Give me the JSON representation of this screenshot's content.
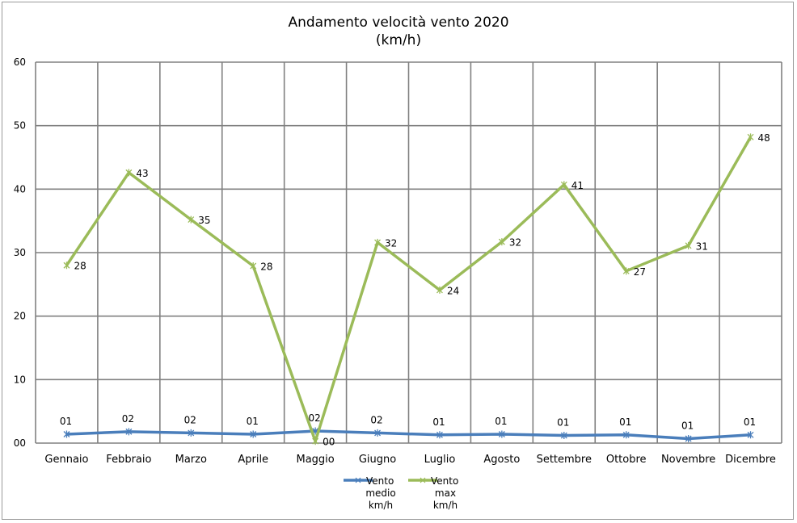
{
  "chart_data": {
    "type": "line",
    "title": "Andamento velocità vento 2020",
    "subtitle": "(km/h)",
    "xlabel": "",
    "ylabel": "",
    "categories": [
      "Gennaio",
      "Febbraio",
      "Marzo",
      "Aprile",
      "Maggio",
      "Giugno",
      "Luglio",
      "Agosto",
      "Settembre",
      "Ottobre",
      "Novembre",
      "Dicembre"
    ],
    "ylim": [
      0,
      60
    ],
    "yticks": [
      "00",
      "10",
      "20",
      "30",
      "40",
      "50",
      "60"
    ],
    "grid": true,
    "legend_position": "bottom",
    "series": [
      {
        "name": "Vento medio km/h",
        "legend_lines": [
          "Vento",
          "medio",
          "km/h"
        ],
        "color": "#4a7ebb",
        "values": [
          1.4,
          1.8,
          1.6,
          1.4,
          1.9,
          1.6,
          1.3,
          1.4,
          1.2,
          1.3,
          0.7,
          1.3
        ],
        "labels": [
          "01",
          "02",
          "02",
          "01",
          "02",
          "02",
          "01",
          "01",
          "01",
          "01",
          "01",
          "01"
        ]
      },
      {
        "name": "Vento max km/h",
        "legend_lines": [
          "Vento",
          "max",
          "km/h"
        ],
        "color": "#9bbb59",
        "values": [
          28,
          42.6,
          35.2,
          27.9,
          0.3,
          31.6,
          24.1,
          31.7,
          40.7,
          27.1,
          31.1,
          48.2
        ],
        "labels": [
          "28",
          "43",
          "35",
          "28",
          "00",
          "32",
          "24",
          "32",
          "41",
          "27",
          "31",
          "48"
        ]
      }
    ]
  }
}
